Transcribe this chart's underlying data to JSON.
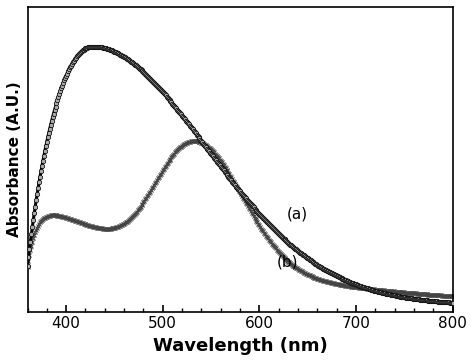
{
  "title": "",
  "xlabel": "Wavelength (nm)",
  "ylabel": "Absorbance (A.U.)",
  "xlim": [
    360,
    800
  ],
  "ylim": [
    0,
    1.15
  ],
  "background_color": "#ffffff",
  "curve_a": {
    "label": "(a)",
    "color": "#000000",
    "marker": "o",
    "markersize": 3.2,
    "linewidth": 2.2,
    "markerfacecolor": "#aaaaaa",
    "markeredgecolor": "#000000",
    "markeredgewidth": 0.5,
    "marker_step": 2
  },
  "curve_b": {
    "label": "(b)",
    "color": "#666666",
    "marker": "x",
    "markersize": 3.5,
    "linewidth": 0.7,
    "markeredgecolor": "#444444",
    "markeredgewidth": 0.8,
    "marker_step": 2
  },
  "xticks": [
    400,
    500,
    600,
    700,
    800
  ],
  "label_a_wl": 620,
  "label_b_wl": 610
}
